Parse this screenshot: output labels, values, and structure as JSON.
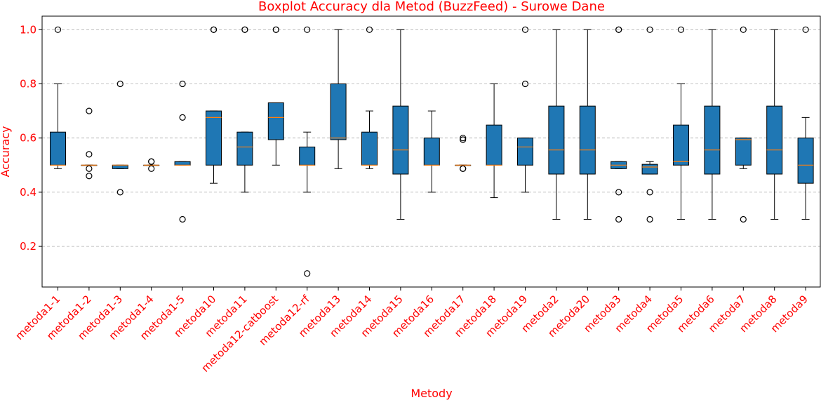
{
  "chart_data": {
    "type": "boxplot",
    "title": "Boxplot Accuracy dla Metod (BuzzFeed) - Surowe Dane",
    "xlabel": "Metody",
    "ylabel": "Accuracy",
    "ylim": [
      0.05,
      1.05
    ],
    "yticks": [
      0.2,
      0.4,
      0.6,
      0.8,
      1.0
    ],
    "ytick_labels": [
      "0.2",
      "0.4",
      "0.6",
      "0.8",
      "1.0"
    ],
    "grid": "y-dashed",
    "colors": {
      "box": "#1f77b4",
      "median": "#ff7f0e",
      "text": "#ff0000"
    },
    "categories": [
      "metoda1-1",
      "metoda1-2",
      "metoda1-3",
      "metoda1-4",
      "metoda1-5",
      "metoda10",
      "metoda11",
      "metoda12-catboost",
      "metoda12-rf",
      "metoda13",
      "metoda14",
      "metoda15",
      "metoda16",
      "metoda17",
      "metoda18",
      "metoda19",
      "metoda2",
      "metoda20",
      "metoda3",
      "metoda4",
      "metoda5",
      "metoda6",
      "metoda7",
      "metoda8",
      "metoda9"
    ],
    "boxes": [
      {
        "whislo": 0.487,
        "q1": 0.5,
        "med": 0.5,
        "q3": 0.622,
        "whishi": 0.8,
        "fliers": [
          1.0
        ]
      },
      {
        "whislo": 0.5,
        "q1": 0.5,
        "med": 0.5,
        "q3": 0.5,
        "whishi": 0.5,
        "fliers": [
          0.46,
          0.487,
          0.54,
          0.7
        ]
      },
      {
        "whislo": 0.487,
        "q1": 0.487,
        "med": 0.5,
        "q3": 0.5,
        "whishi": 0.5,
        "fliers": [
          0.4,
          0.8
        ]
      },
      {
        "whislo": 0.5,
        "q1": 0.5,
        "med": 0.5,
        "q3": 0.5,
        "whishi": 0.5,
        "fliers": [
          0.487,
          0.513,
          0.513
        ]
      },
      {
        "whislo": 0.5,
        "q1": 0.5,
        "med": 0.5,
        "q3": 0.513,
        "whishi": 0.513,
        "fliers": [
          0.3,
          0.676,
          0.8
        ]
      },
      {
        "whislo": 0.433,
        "q1": 0.5,
        "med": 0.676,
        "q3": 0.7,
        "whishi": 0.7,
        "fliers": [
          1.0,
          1.0
        ]
      },
      {
        "whislo": 0.4,
        "q1": 0.5,
        "med": 0.567,
        "q3": 0.622,
        "whishi": 0.622,
        "fliers": [
          1.0,
          1.0
        ]
      },
      {
        "whislo": 0.5,
        "q1": 0.594,
        "med": 0.676,
        "q3": 0.73,
        "whishi": 0.73,
        "fliers": [
          1.0,
          1.0
        ]
      },
      {
        "whislo": 0.4,
        "q1": 0.5,
        "med": 0.5,
        "q3": 0.567,
        "whishi": 0.622,
        "fliers": [
          0.1,
          1.0
        ]
      },
      {
        "whislo": 0.487,
        "q1": 0.594,
        "med": 0.6,
        "q3": 0.8,
        "whishi": 1.0,
        "fliers": []
      },
      {
        "whislo": 0.487,
        "q1": 0.5,
        "med": 0.5,
        "q3": 0.622,
        "whishi": 0.7,
        "fliers": [
          1.0
        ]
      },
      {
        "whislo": 0.3,
        "q1": 0.467,
        "med": 0.556,
        "q3": 0.718,
        "whishi": 1.0,
        "fliers": []
      },
      {
        "whislo": 0.4,
        "q1": 0.5,
        "med": 0.5,
        "q3": 0.6,
        "whishi": 0.7,
        "fliers": []
      },
      {
        "whislo": 0.5,
        "q1": 0.5,
        "med": 0.5,
        "q3": 0.5,
        "whishi": 0.5,
        "fliers": [
          0.487,
          0.487,
          0.594,
          0.6
        ]
      },
      {
        "whislo": 0.38,
        "q1": 0.5,
        "med": 0.5,
        "q3": 0.648,
        "whishi": 0.8,
        "fliers": []
      },
      {
        "whislo": 0.4,
        "q1": 0.5,
        "med": 0.567,
        "q3": 0.6,
        "whishi": 0.6,
        "fliers": [
          0.8,
          1.0
        ]
      },
      {
        "whislo": 0.3,
        "q1": 0.467,
        "med": 0.556,
        "q3": 0.718,
        "whishi": 1.0,
        "fliers": []
      },
      {
        "whislo": 0.3,
        "q1": 0.467,
        "med": 0.556,
        "q3": 0.718,
        "whishi": 1.0,
        "fliers": []
      },
      {
        "whislo": 0.487,
        "q1": 0.487,
        "med": 0.5,
        "q3": 0.513,
        "whishi": 0.513,
        "fliers": [
          0.3,
          0.4,
          1.0,
          1.0
        ]
      },
      {
        "whislo": 0.467,
        "q1": 0.467,
        "med": 0.493,
        "q3": 0.503,
        "whishi": 0.513,
        "fliers": [
          0.3,
          0.4,
          1.0
        ]
      },
      {
        "whislo": 0.3,
        "q1": 0.5,
        "med": 0.513,
        "q3": 0.648,
        "whishi": 0.8,
        "fliers": [
          1.0
        ]
      },
      {
        "whislo": 0.3,
        "q1": 0.467,
        "med": 0.556,
        "q3": 0.718,
        "whishi": 1.0,
        "fliers": []
      },
      {
        "whislo": 0.487,
        "q1": 0.5,
        "med": 0.594,
        "q3": 0.6,
        "whishi": 0.6,
        "fliers": [
          0.3,
          1.0
        ]
      },
      {
        "whislo": 0.3,
        "q1": 0.467,
        "med": 0.556,
        "q3": 0.718,
        "whishi": 1.0,
        "fliers": []
      },
      {
        "whislo": 0.3,
        "q1": 0.433,
        "med": 0.5,
        "q3": 0.6,
        "whishi": 0.676,
        "fliers": [
          1.0
        ]
      }
    ]
  }
}
